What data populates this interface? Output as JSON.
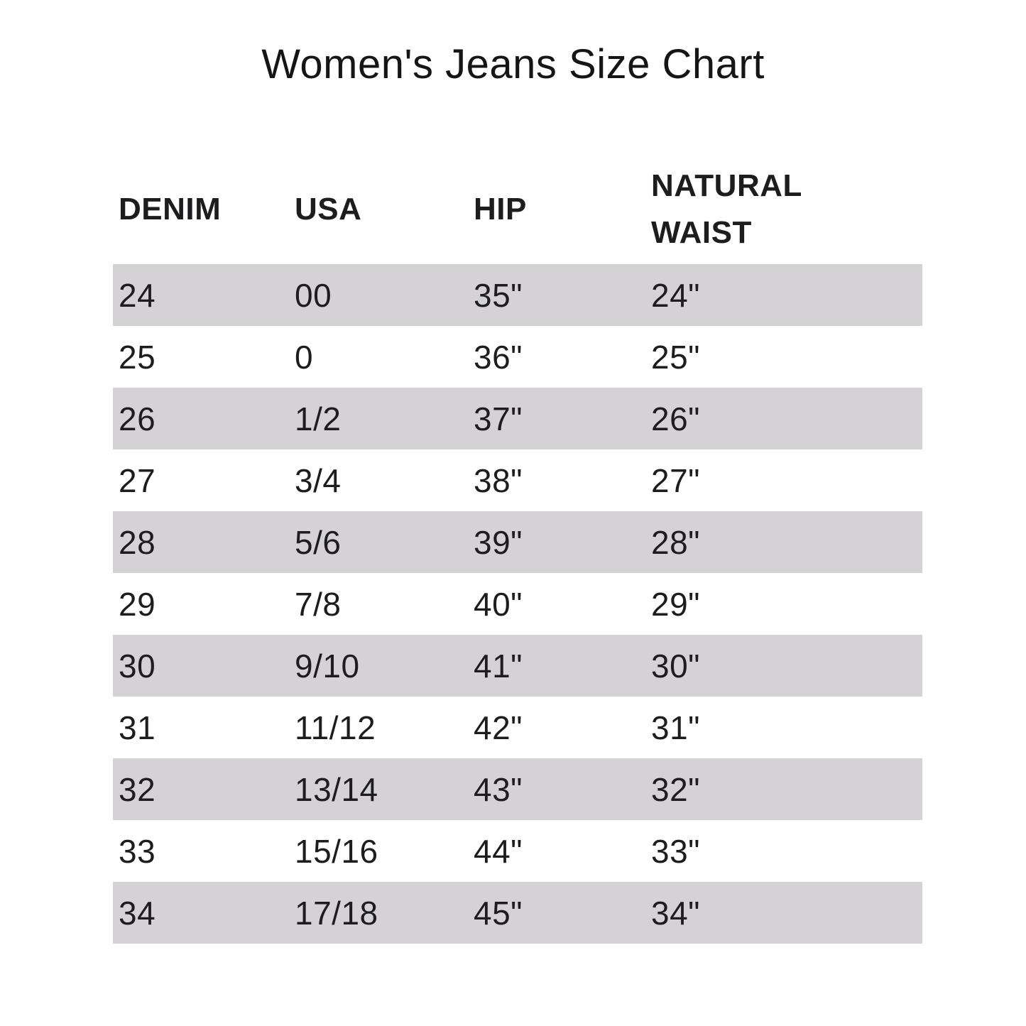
{
  "page": {
    "title": "Women's Jeans Size Chart"
  },
  "colors": {
    "background": "#ffffff",
    "stripe": "#d4d2d5",
    "text": "#1d1d1f",
    "title_text": "#151515"
  },
  "chart_data": {
    "type": "table",
    "title": "Women's Jeans Size Chart",
    "columns": [
      "DENIM",
      "USA",
      "HIP",
      "NATURAL WAIST"
    ],
    "rows": [
      [
        "24",
        "00",
        "35\"",
        "24\""
      ],
      [
        "25",
        "0",
        "36\"",
        "25\""
      ],
      [
        "26",
        "1/2",
        "37\"",
        "26\""
      ],
      [
        "27",
        "3/4",
        "38\"",
        "27\""
      ],
      [
        "28",
        "5/6",
        "39\"",
        "28\""
      ],
      [
        "29",
        "7/8",
        "40\"",
        "29\""
      ],
      [
        "30",
        "9/10",
        "41\"",
        "30\""
      ],
      [
        "31",
        "11/12",
        "42\"",
        "31\""
      ],
      [
        "32",
        "13/14",
        "43\"",
        "32\""
      ],
      [
        "33",
        "15/16",
        "44\"",
        "33\""
      ],
      [
        "34",
        "17/18",
        "45\"",
        "34\""
      ]
    ],
    "layout": {
      "grid": "row-stripes",
      "first_row_striped": true,
      "legend": "none"
    }
  }
}
